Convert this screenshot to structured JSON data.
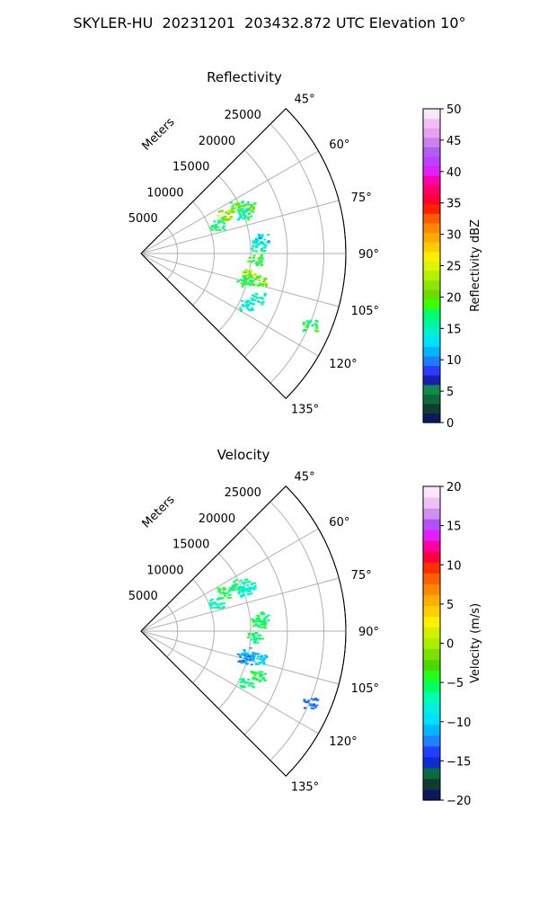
{
  "title": "SKYLER-HU  20231201  203432.872 UTC Elevation 10°",
  "chart_data": [
    {
      "type": "heatmap",
      "title": "Reflectivity",
      "projection": "polar sector",
      "theta_ticks": [
        "45°",
        "60°",
        "75°",
        "90°",
        "105°",
        "120°",
        "135°"
      ],
      "r_ticks": [
        "5000",
        "10000",
        "15000",
        "20000",
        "25000"
      ],
      "r_axis_label": "Meters",
      "rlim": [
        0,
        28000
      ],
      "theta_range_deg": [
        45,
        135
      ],
      "grid": true,
      "colorbar": {
        "label": "Reflectivity dBZ",
        "range": [
          0,
          50
        ],
        "ticks": [
          "0",
          "5",
          "10",
          "15",
          "20",
          "25",
          "30",
          "35",
          "40",
          "45",
          "50"
        ]
      },
      "echoes": [
        {
          "theta": 64,
          "r": 14500,
          "value": 20
        },
        {
          "theta": 66,
          "r": 16000,
          "value": 18
        },
        {
          "theta": 65,
          "r": 12500,
          "value": 22
        },
        {
          "theta": 69,
          "r": 15000,
          "value": 16
        },
        {
          "theta": 69,
          "r": 11000,
          "value": 17
        },
        {
          "theta": 83,
          "r": 16500,
          "value": 13
        },
        {
          "theta": 86,
          "r": 16000,
          "value": 15
        },
        {
          "theta": 93,
          "r": 15500,
          "value": 18
        },
        {
          "theta": 101,
          "r": 15000,
          "value": 22
        },
        {
          "theta": 103,
          "r": 16500,
          "value": 20
        },
        {
          "theta": 105,
          "r": 14500,
          "value": 18
        },
        {
          "theta": 111,
          "r": 17000,
          "value": 15
        },
        {
          "theta": 116,
          "r": 16000,
          "value": 14
        },
        {
          "theta": 113,
          "r": 25000,
          "value": 17
        }
      ]
    },
    {
      "type": "heatmap",
      "title": "Velocity",
      "projection": "polar sector",
      "theta_ticks": [
        "45°",
        "60°",
        "75°",
        "90°",
        "105°",
        "120°",
        "135°"
      ],
      "r_ticks": [
        "5000",
        "10000",
        "15000",
        "20000",
        "25000"
      ],
      "r_axis_label": "Meters",
      "rlim": [
        0,
        28000
      ],
      "theta_range_deg": [
        45,
        135
      ],
      "grid": true,
      "colorbar": {
        "label": "Velocity (m/s)",
        "range": [
          -20,
          20
        ],
        "ticks": [
          "−20",
          "−15",
          "−10",
          "−5",
          "0",
          "5",
          "10",
          "15",
          "20"
        ]
      },
      "echoes": [
        {
          "theta": 64,
          "r": 14500,
          "value": -6
        },
        {
          "theta": 66,
          "r": 16000,
          "value": -7
        },
        {
          "theta": 65,
          "r": 12500,
          "value": -5
        },
        {
          "theta": 69,
          "r": 15000,
          "value": -8
        },
        {
          "theta": 69,
          "r": 11000,
          "value": -7
        },
        {
          "theta": 83,
          "r": 16500,
          "value": -6
        },
        {
          "theta": 86,
          "r": 16000,
          "value": -5
        },
        {
          "theta": 93,
          "r": 15500,
          "value": -6
        },
        {
          "theta": 101,
          "r": 15000,
          "value": -11
        },
        {
          "theta": 103,
          "r": 16500,
          "value": -10
        },
        {
          "theta": 105,
          "r": 14500,
          "value": -12
        },
        {
          "theta": 111,
          "r": 17000,
          "value": -5
        },
        {
          "theta": 116,
          "r": 16000,
          "value": -6
        },
        {
          "theta": 113,
          "r": 25000,
          "value": -13
        }
      ]
    }
  ]
}
